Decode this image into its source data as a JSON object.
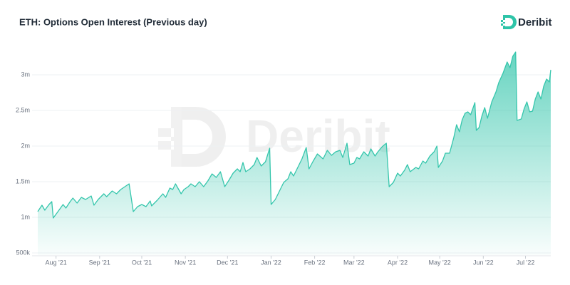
{
  "chart_data": {
    "type": "area",
    "title": "ETH: Options Open Interest (Previous day)",
    "brand": "Deribit",
    "series": [
      {
        "name": "ETH Options Open Interest",
        "color": "#35c6ac",
        "x": [
          0,
          3,
          5,
          8,
          10,
          11,
          14,
          18,
          20,
          23,
          25,
          28,
          31,
          34,
          38,
          40,
          43,
          47,
          49,
          53,
          56,
          59,
          62,
          65,
          68,
          71,
          74,
          77,
          80,
          81,
          85,
          89,
          91,
          94,
          96,
          98,
          102,
          104,
          107,
          109,
          112,
          115,
          118,
          121,
          124,
          127,
          130,
          133,
          136,
          139,
          142,
          144,
          146,
          148,
          151,
          154,
          156,
          159,
          162,
          165,
          166,
          169,
          172,
          175,
          178,
          180,
          182,
          185,
          188,
          191,
          193,
          196,
          199,
          203,
          206,
          209,
          212,
          215,
          217,
          220,
          222,
          225,
          227,
          229,
          232,
          235,
          237,
          240,
          242,
          245,
          248,
          250,
          253,
          256,
          258,
          261,
          263,
          265,
          269,
          271,
          274,
          276,
          279,
          282,
          284,
          285,
          288,
          290,
          293,
          296,
          298,
          300,
          302,
          304,
          306,
          308,
          311,
          312,
          314,
          316,
          318,
          320,
          323,
          326,
          328,
          331,
          334,
          336,
          338,
          340,
          341,
          344,
          346,
          348,
          350,
          352,
          354,
          356,
          358,
          360,
          362,
          364,
          365
        ],
        "values": [
          1080000,
          1170000,
          1100000,
          1180000,
          1220000,
          990000,
          1070000,
          1180000,
          1130000,
          1220000,
          1270000,
          1200000,
          1280000,
          1250000,
          1300000,
          1170000,
          1250000,
          1330000,
          1290000,
          1370000,
          1330000,
          1390000,
          1430000,
          1470000,
          1080000,
          1150000,
          1180000,
          1150000,
          1230000,
          1160000,
          1240000,
          1330000,
          1280000,
          1410000,
          1390000,
          1470000,
          1330000,
          1390000,
          1430000,
          1470000,
          1430000,
          1500000,
          1430000,
          1510000,
          1610000,
          1560000,
          1640000,
          1430000,
          1520000,
          1620000,
          1680000,
          1640000,
          1770000,
          1640000,
          1680000,
          1740000,
          1840000,
          1720000,
          1780000,
          1970000,
          1180000,
          1250000,
          1370000,
          1490000,
          1540000,
          1640000,
          1580000,
          1700000,
          1820000,
          1980000,
          1680000,
          1790000,
          1890000,
          1820000,
          1940000,
          1870000,
          1920000,
          1940000,
          1840000,
          2040000,
          1740000,
          1760000,
          1840000,
          1820000,
          1920000,
          1860000,
          1960000,
          1860000,
          1920000,
          1990000,
          2040000,
          1430000,
          1490000,
          1620000,
          1580000,
          1660000,
          1740000,
          1640000,
          1700000,
          1680000,
          1790000,
          1760000,
          1860000,
          1920000,
          2000000,
          1700000,
          1790000,
          1900000,
          1900000,
          2120000,
          2300000,
          2200000,
          2370000,
          2460000,
          2480000,
          2440000,
          2610000,
          2220000,
          2260000,
          2420000,
          2540000,
          2390000,
          2620000,
          2760000,
          2890000,
          3020000,
          3180000,
          3100000,
          3260000,
          3320000,
          2360000,
          2380000,
          2520000,
          2620000,
          2480000,
          2490000,
          2660000,
          2760000,
          2660000,
          2840000,
          2940000,
          2900000,
          3070000
        ]
      }
    ],
    "xlim": [
      0,
      365
    ],
    "xticks": [
      {
        "value": 13,
        "label": "Aug '21"
      },
      {
        "value": 44,
        "label": "Sep '21"
      },
      {
        "value": 74,
        "label": "Oct '21"
      },
      {
        "value": 105,
        "label": "Nov '21"
      },
      {
        "value": 135,
        "label": "Dec '21"
      },
      {
        "value": 166,
        "label": "Jan '22"
      },
      {
        "value": 197,
        "label": "Feb '22"
      },
      {
        "value": 225,
        "label": "Mar '22"
      },
      {
        "value": 256,
        "label": "Apr '22"
      },
      {
        "value": 286,
        "label": "May '22"
      },
      {
        "value": 317,
        "label": "Jun '22"
      },
      {
        "value": 347,
        "label": "Jul '22"
      }
    ],
    "ylim": [
      500000,
      3550000
    ],
    "yticks": [
      {
        "value": 500000,
        "label": "500k"
      },
      {
        "value": 1000000,
        "label": "1m"
      },
      {
        "value": 1500000,
        "label": "1.5m"
      },
      {
        "value": 2000000,
        "label": "2m"
      },
      {
        "value": 2500000,
        "label": "2.5m"
      },
      {
        "value": 3000000,
        "label": "3m"
      }
    ],
    "grid": true
  }
}
